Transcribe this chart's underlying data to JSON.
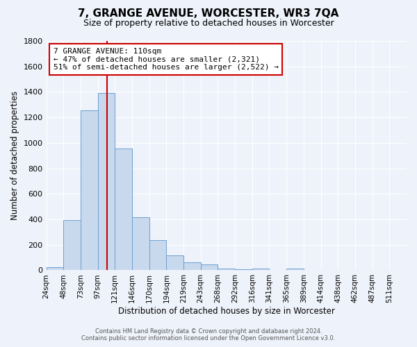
{
  "title": "7, GRANGE AVENUE, WORCESTER, WR3 7QA",
  "subtitle": "Size of property relative to detached houses in Worcester",
  "xlabel": "Distribution of detached houses by size in Worcester",
  "ylabel": "Number of detached properties",
  "bar_labels": [
    "24sqm",
    "48sqm",
    "73sqm",
    "97sqm",
    "121sqm",
    "146sqm",
    "170sqm",
    "194sqm",
    "219sqm",
    "243sqm",
    "268sqm",
    "292sqm",
    "316sqm",
    "341sqm",
    "365sqm",
    "389sqm",
    "414sqm",
    "438sqm",
    "462sqm",
    "487sqm",
    "511sqm"
  ],
  "bar_values": [
    25,
    395,
    1255,
    1390,
    955,
    415,
    235,
    115,
    65,
    47,
    15,
    10,
    13,
    0,
    13,
    0,
    0,
    0,
    0,
    0,
    0
  ],
  "bar_color": "#c9d9ed",
  "bar_edgecolor": "#6b9fd4",
  "vline_x": 4,
  "vline_color": "#cc0000",
  "annotation_text": "7 GRANGE AVENUE: 110sqm\n← 47% of detached houses are smaller (2,321)\n51% of semi-detached houses are larger (2,522) →",
  "annotation_box_color": "#cc0000",
  "annotation_bg": "#ffffff",
  "ylim": [
    0,
    1800
  ],
  "yticks": [
    0,
    200,
    400,
    600,
    800,
    1000,
    1200,
    1400,
    1600,
    1800
  ],
  "footer_line1": "Contains HM Land Registry data © Crown copyright and database right 2024.",
  "footer_line2": "Contains public sector information licensed under the Open Government Licence v3.0.",
  "bg_color": "#eef2fa",
  "plot_bg": "#eef2fa",
  "vline_bar_index": 3.65
}
